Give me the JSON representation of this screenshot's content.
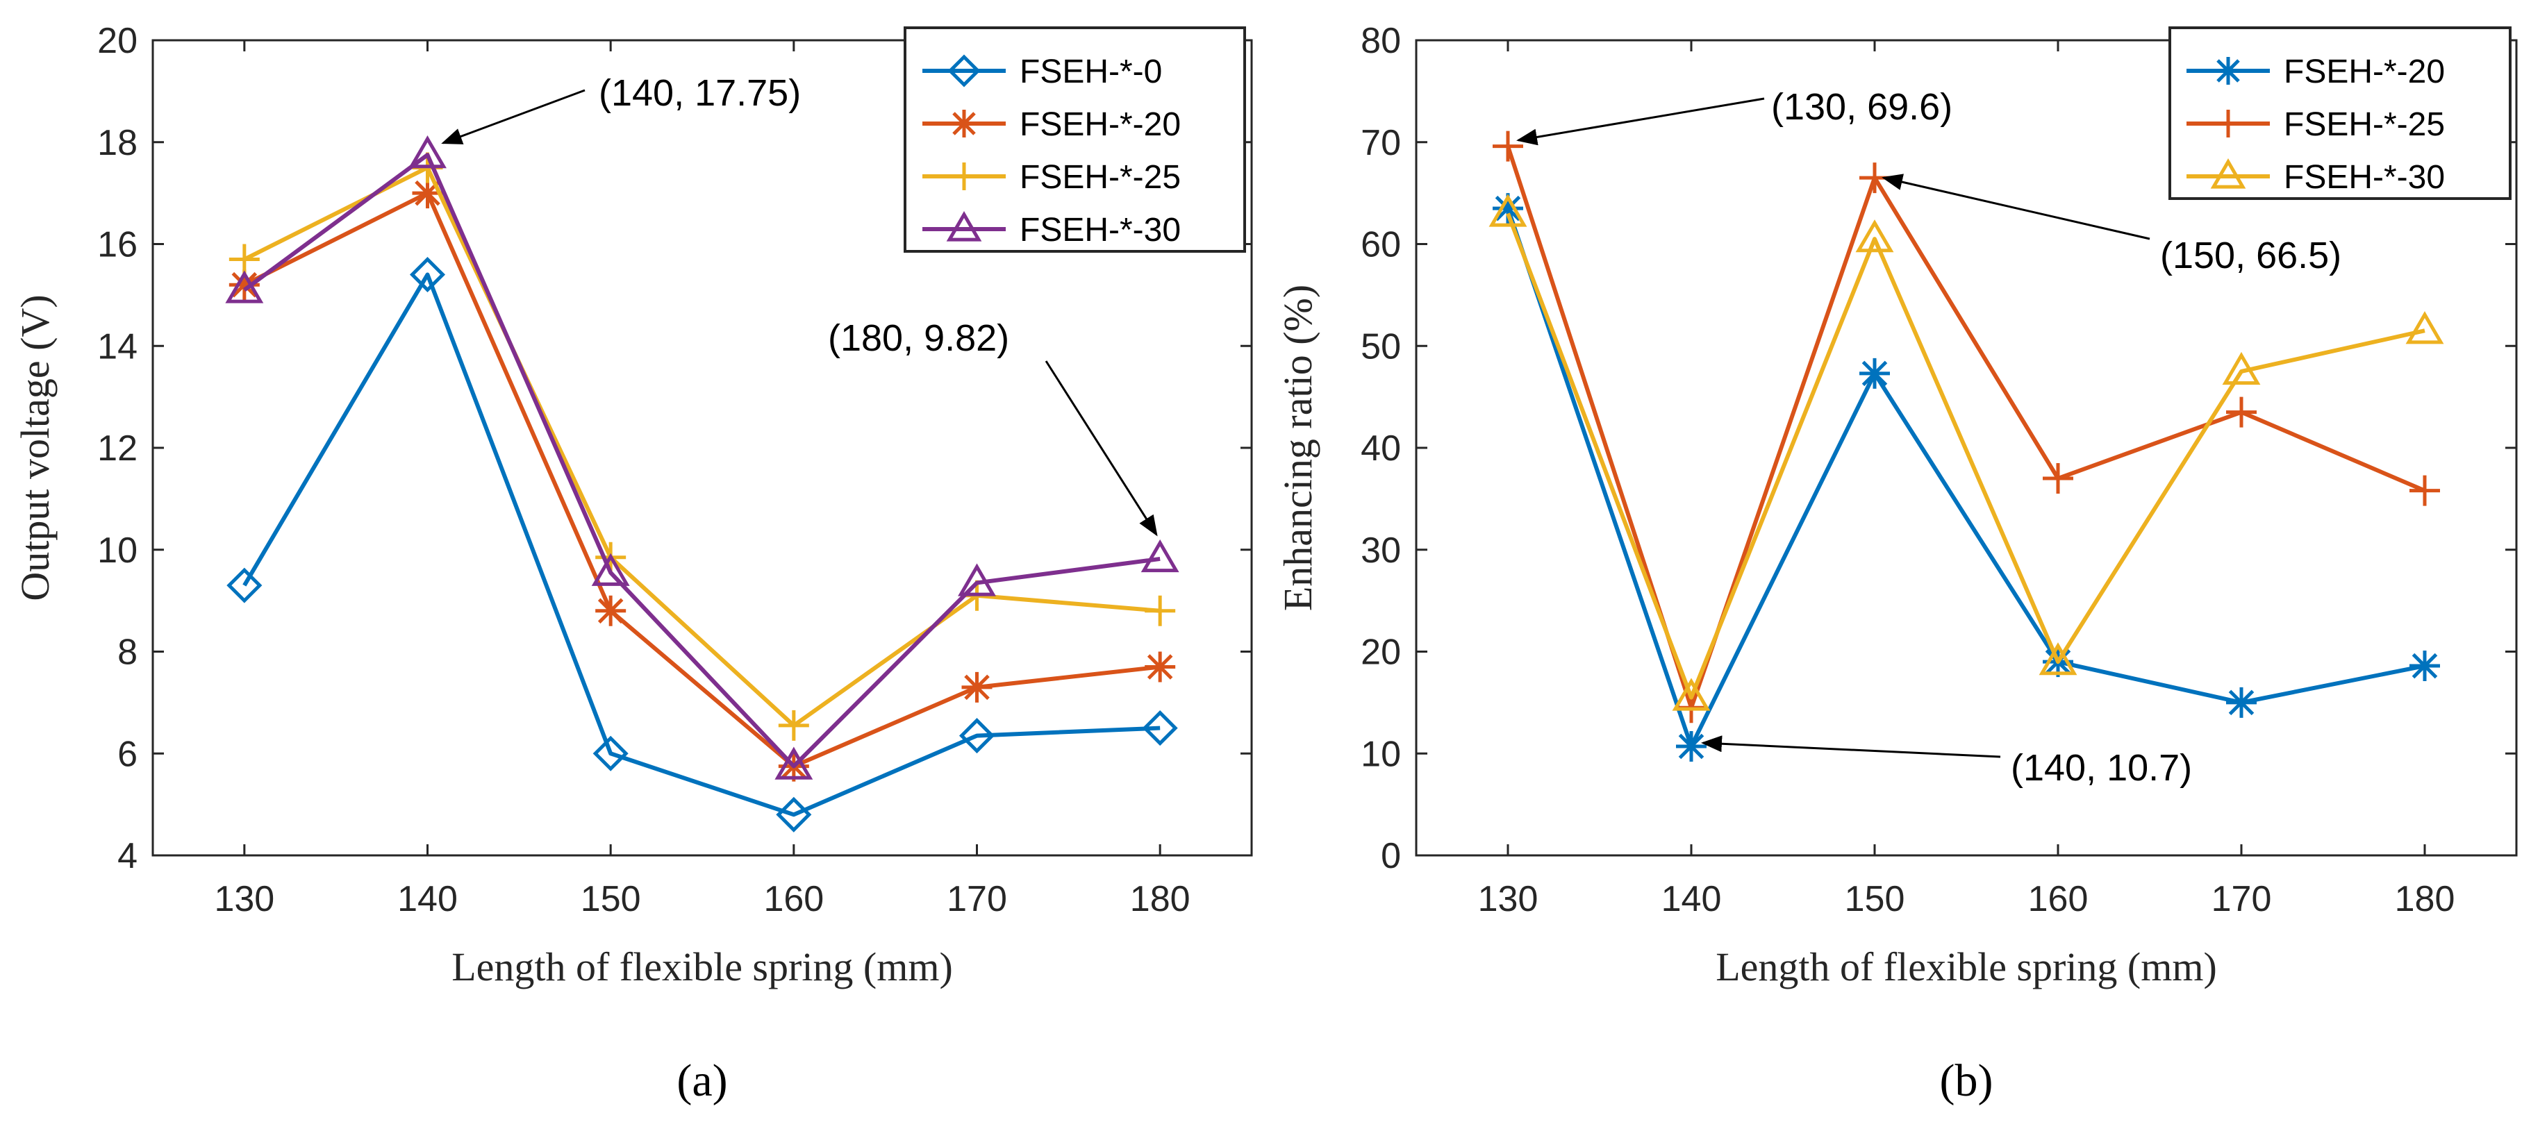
{
  "colors": {
    "blue": "#0072BD",
    "orange": "#D95319",
    "yellow": "#EDB120",
    "purple": "#7E2F8E",
    "axis": "#262626"
  },
  "chart_data": [
    {
      "id": "a",
      "type": "line",
      "subfigure_label": "(a)",
      "xlabel": "Length of flexible spring (mm)",
      "ylabel": "Output voltage (V)",
      "x": [
        130,
        140,
        150,
        160,
        170,
        180
      ],
      "xlim": [
        125,
        185
      ],
      "ylim": [
        4,
        20
      ],
      "xticks": [
        130,
        140,
        150,
        160,
        170,
        180
      ],
      "yticks": [
        4,
        6,
        8,
        10,
        12,
        14,
        16,
        18,
        20
      ],
      "legend_position": "top-right",
      "series": [
        {
          "name": "FSEH-*-0",
          "color": "blue",
          "marker": "diamond",
          "values": [
            9.3,
            15.4,
            6.0,
            4.8,
            6.35,
            6.5
          ]
        },
        {
          "name": "FSEH-*-20",
          "color": "orange",
          "marker": "asterisk",
          "values": [
            15.2,
            17.0,
            8.8,
            5.75,
            7.3,
            7.7
          ]
        },
        {
          "name": "FSEH-*-25",
          "color": "yellow",
          "marker": "plus",
          "values": [
            15.7,
            17.5,
            9.85,
            6.55,
            9.1,
            8.8
          ]
        },
        {
          "name": "FSEH-*-30",
          "color": "purple",
          "marker": "triangle",
          "values": [
            15.1,
            17.75,
            9.55,
            5.75,
            9.35,
            9.82
          ]
        }
      ],
      "annotations": [
        {
          "text": "(140, 17.75)",
          "x": 140,
          "y": 17.75
        },
        {
          "text": "(180, 9.82)",
          "x": 180,
          "y": 9.82
        }
      ]
    },
    {
      "id": "b",
      "type": "line",
      "subfigure_label": "(b)",
      "xlabel": "Length of flexible spring (mm)",
      "ylabel": "Enhancing ratio (%)",
      "x": [
        130,
        140,
        150,
        160,
        170,
        180
      ],
      "xlim": [
        125,
        185
      ],
      "ylim": [
        0,
        80
      ],
      "xticks": [
        130,
        140,
        150,
        160,
        170,
        180
      ],
      "yticks": [
        0,
        10,
        20,
        30,
        40,
        50,
        60,
        70,
        80
      ],
      "legend_position": "top-right",
      "series": [
        {
          "name": "FSEH-*-20",
          "color": "blue",
          "marker": "asterisk",
          "values": [
            63.5,
            10.7,
            47.3,
            19.0,
            15.0,
            18.6
          ]
        },
        {
          "name": "FSEH-*-25",
          "color": "orange",
          "marker": "plus",
          "values": [
            69.6,
            14.5,
            66.5,
            37.0,
            43.5,
            35.8
          ]
        },
        {
          "name": "FSEH-*-30",
          "color": "yellow",
          "marker": "triangle",
          "values": [
            63.0,
            15.5,
            60.5,
            19.0,
            47.5,
            51.5
          ]
        }
      ],
      "annotations": [
        {
          "text": "(130, 69.6)",
          "x": 130,
          "y": 69.6
        },
        {
          "text": "(150, 66.5)",
          "x": 150,
          "y": 66.5
        },
        {
          "text": "(140, 10.7)",
          "x": 140,
          "y": 10.7
        }
      ]
    }
  ]
}
